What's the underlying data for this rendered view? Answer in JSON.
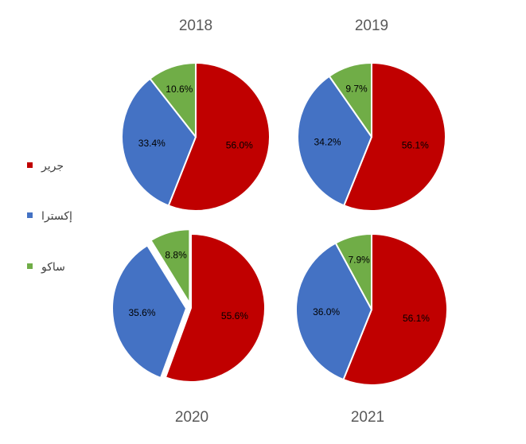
{
  "legend": {
    "items": [
      {
        "label": "جرير",
        "color": "#C00000"
      },
      {
        "label": "إكسترا",
        "color": "#4472C4"
      },
      {
        "label": "ساكو",
        "color": "#70AD47"
      }
    ]
  },
  "chart_data": [
    {
      "type": "pie",
      "title": "2018",
      "categories": [
        "جرير",
        "إكسترا",
        "ساكو"
      ],
      "values": [
        56.0,
        33.4,
        10.6
      ],
      "labels": [
        "56.0%",
        "33.4%",
        "10.6%"
      ],
      "colors": [
        "#C00000",
        "#4472C4",
        "#70AD47"
      ]
    },
    {
      "type": "pie",
      "title": "2019",
      "categories": [
        "جرير",
        "إكسترا",
        "ساكو"
      ],
      "values": [
        56.1,
        34.2,
        9.7
      ],
      "labels": [
        "56.1%",
        "34.2%",
        "9.7%"
      ],
      "colors": [
        "#C00000",
        "#4472C4",
        "#70AD47"
      ]
    },
    {
      "type": "pie",
      "title": "2020",
      "categories": [
        "جرير",
        "إكسترا",
        "ساكو"
      ],
      "values": [
        55.6,
        35.6,
        8.8
      ],
      "labels": [
        "55.6%",
        "35.6%",
        "8.8%"
      ],
      "colors": [
        "#C00000",
        "#4472C4",
        "#70AD47"
      ],
      "exploded": true
    },
    {
      "type": "pie",
      "title": "2021",
      "categories": [
        "جرير",
        "إكسترا",
        "ساكو"
      ],
      "values": [
        56.1,
        36.0,
        7.9
      ],
      "labels": [
        "56.1%",
        "36.0%",
        "7.9%"
      ],
      "colors": [
        "#C00000",
        "#4472C4",
        "#70AD47"
      ]
    }
  ]
}
